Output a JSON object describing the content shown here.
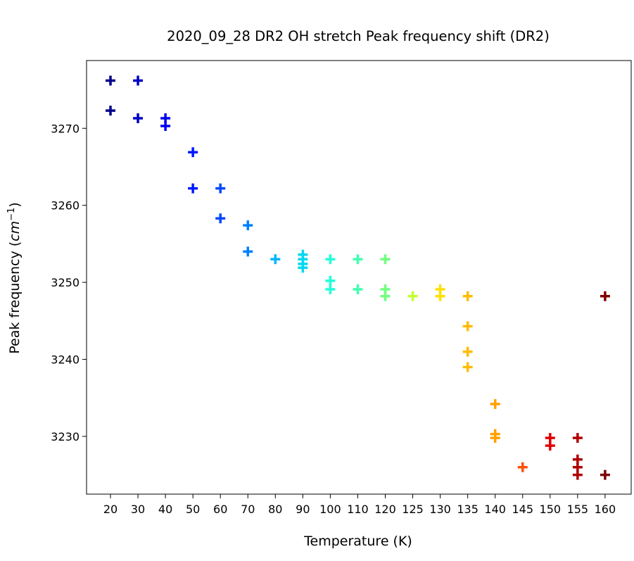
{
  "chart_data": {
    "type": "scatter",
    "title": "2020_09_28 DR2 OH stretch Peak frequency shift (DR2)",
    "xlabel": "Temperature (K)",
    "ylabel_prefix": "Peak frequency (",
    "ylabel_unit": "cm",
    "ylabel_exp": "−1",
    "ylabel_suffix": ")",
    "categories": [
      "20",
      "30",
      "40",
      "50",
      "60",
      "70",
      "80",
      "90",
      "100",
      "110",
      "120",
      "125",
      "130",
      "135",
      "140",
      "145",
      "150",
      "155",
      "160"
    ],
    "y_ticks": [
      3230,
      3240,
      3250,
      3260,
      3270
    ],
    "ylim": [
      3222.5,
      3278.8
    ],
    "marker": "plus",
    "colormap": "jet",
    "category_colors": [
      "#00008b",
      "#0000c4",
      "#0000f0",
      "#0018ff",
      "#0048ff",
      "#0080ff",
      "#00b4ff",
      "#00d8f0",
      "#20ffd8",
      "#40ffb0",
      "#70ff80",
      "#c0ff30",
      "#ffe000",
      "#ffbc00",
      "#ffa000",
      "#ff5000",
      "#e00000",
      "#b00000",
      "#800000"
    ],
    "points": [
      {
        "x": "20",
        "y": 3276.2
      },
      {
        "x": "20",
        "y": 3272.3
      },
      {
        "x": "30",
        "y": 3276.2
      },
      {
        "x": "30",
        "y": 3271.3
      },
      {
        "x": "40",
        "y": 3271.3
      },
      {
        "x": "40",
        "y": 3270.3
      },
      {
        "x": "50",
        "y": 3266.9
      },
      {
        "x": "50",
        "y": 3262.2
      },
      {
        "x": "60",
        "y": 3262.2
      },
      {
        "x": "60",
        "y": 3258.3
      },
      {
        "x": "70",
        "y": 3257.4
      },
      {
        "x": "70",
        "y": 3254.0
      },
      {
        "x": "80",
        "y": 3253.0
      },
      {
        "x": "90",
        "y": 3253.6
      },
      {
        "x": "90",
        "y": 3253.0
      },
      {
        "x": "90",
        "y": 3252.4
      },
      {
        "x": "90",
        "y": 3251.9
      },
      {
        "x": "100",
        "y": 3253.0
      },
      {
        "x": "100",
        "y": 3250.2
      },
      {
        "x": "100",
        "y": 3249.1
      },
      {
        "x": "110",
        "y": 3253.0
      },
      {
        "x": "110",
        "y": 3249.1
      },
      {
        "x": "120",
        "y": 3253.0
      },
      {
        "x": "120",
        "y": 3249.1
      },
      {
        "x": "120",
        "y": 3248.2
      },
      {
        "x": "125",
        "y": 3248.2
      },
      {
        "x": "130",
        "y": 3249.1
      },
      {
        "x": "130",
        "y": 3248.2
      },
      {
        "x": "135",
        "y": 3248.2
      },
      {
        "x": "135",
        "y": 3244.3
      },
      {
        "x": "135",
        "y": 3241.0
      },
      {
        "x": "135",
        "y": 3239.0
      },
      {
        "x": "140",
        "y": 3234.2
      },
      {
        "x": "140",
        "y": 3230.3
      },
      {
        "x": "140",
        "y": 3229.8
      },
      {
        "x": "145",
        "y": 3226.0
      },
      {
        "x": "150",
        "y": 3229.8
      },
      {
        "x": "150",
        "y": 3228.8
      },
      {
        "x": "155",
        "y": 3229.8
      },
      {
        "x": "155",
        "y": 3227.0
      },
      {
        "x": "155",
        "y": 3226.0
      },
      {
        "x": "155",
        "y": 3225.0
      },
      {
        "x": "160",
        "y": 3248.2
      },
      {
        "x": "160",
        "y": 3225.0
      }
    ],
    "grid": false,
    "legend": "none"
  }
}
